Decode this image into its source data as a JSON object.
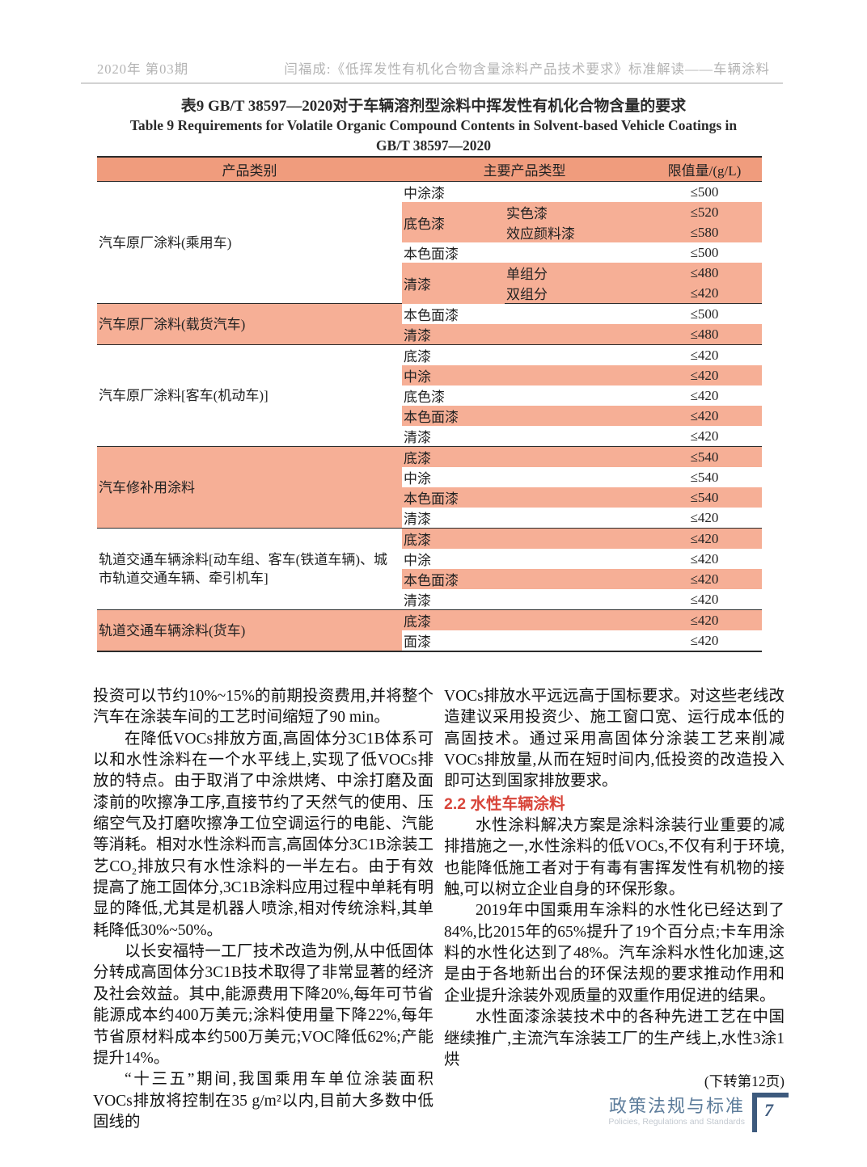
{
  "header": {
    "issue": "2020年 第03期",
    "running_title": "闫福成:《低挥发性有机化合物含量涂料产品技术要求》标准解读——车辆涂料"
  },
  "table": {
    "title_zh": "表9  GB/T 38597—2020对于车辆溶剂型涂料中挥发性有机化合物含量的要求",
    "title_en_line1": "Table 9   Requirements for Volatile Organic Compound Contents in Solvent-based Vehicle Coatings in",
    "title_en_line2": "GB/T 38597—2020",
    "columns": [
      "产品类别",
      "主要产品类型",
      "限值量/(g/L)"
    ],
    "colors": {
      "header_bg": "#f09c7d",
      "band_bg": "#f6af96"
    },
    "groups": [
      {
        "category": "汽车原厂涂料(乘用车)",
        "category_shaded": false,
        "rows": [
          {
            "type": "中涂漆",
            "value": "≤500",
            "shaded": false
          },
          {
            "type": "底色漆",
            "shaded": true,
            "subs": [
              {
                "name": "实色漆",
                "value": "≤520"
              },
              {
                "name": "效应颜料漆",
                "value": "≤580"
              }
            ]
          },
          {
            "type": "本色面漆",
            "value": "≤500",
            "shaded": false
          },
          {
            "type": "清漆",
            "shaded": true,
            "subs": [
              {
                "name": "单组分",
                "value": "≤480"
              },
              {
                "name": "双组分",
                "value": "≤420"
              }
            ]
          }
        ]
      },
      {
        "category": "汽车原厂涂料(载货汽车)",
        "category_shaded": true,
        "rows": [
          {
            "type": "本色面漆",
            "value": "≤500",
            "shaded": false
          },
          {
            "type": "清漆",
            "value": "≤480",
            "shaded": true
          }
        ]
      },
      {
        "category": "汽车原厂涂料[客车(机动车)]",
        "category_shaded": false,
        "rows": [
          {
            "type": "底漆",
            "value": "≤420",
            "shaded": false
          },
          {
            "type": "中涂",
            "value": "≤420",
            "shaded": true
          },
          {
            "type": "底色漆",
            "value": "≤420",
            "shaded": false
          },
          {
            "type": "本色面漆",
            "value": "≤420",
            "shaded": true
          },
          {
            "type": "清漆",
            "value": "≤420",
            "shaded": false
          }
        ]
      },
      {
        "category": "汽车修补用涂料",
        "category_shaded": true,
        "rows": [
          {
            "type": "底漆",
            "value": "≤540",
            "shaded": true
          },
          {
            "type": "中涂",
            "value": "≤540",
            "shaded": false
          },
          {
            "type": "本色面漆",
            "value": "≤540",
            "shaded": true
          },
          {
            "type": "清漆",
            "value": "≤420",
            "shaded": false
          }
        ]
      },
      {
        "category": "轨道交通车辆涂料[动车组、客车(铁道车辆)、城市轨道交通车辆、牵引机车]",
        "category_shaded": false,
        "rows": [
          {
            "type": "底漆",
            "value": "≤420",
            "shaded": true
          },
          {
            "type": "中涂",
            "value": "≤420",
            "shaded": false
          },
          {
            "type": "本色面漆",
            "value": "≤420",
            "shaded": true
          },
          {
            "type": "清漆",
            "value": "≤420",
            "shaded": false
          }
        ]
      },
      {
        "category": "轨道交通车辆涂料(货车)",
        "category_shaded": true,
        "rows": [
          {
            "type": "底漆",
            "value": "≤420",
            "shaded": true
          },
          {
            "type": "面漆",
            "value": "≤420",
            "shaded": false
          }
        ]
      }
    ]
  },
  "body": {
    "left_column": {
      "blocks": [
        {
          "kind": "p",
          "indent": false,
          "text": "投资可以节约10%~15%的前期投资费用,并将整个汽车在涂装车间的工艺时间缩短了90 min。"
        },
        {
          "kind": "p",
          "indent": true,
          "text": "在降低VOCs排放方面,高固体分3C1B体系可以和水性涂料在一个水平线上,实现了低VOCs排放的特点。由于取消了中涂烘烤、中涂打磨及面漆前的吹擦净工序,直接节约了天然气的使用、压缩空气及打磨吹擦净工位空调运行的电能、汽能等消耗。相对水性涂料而言,高固体分3C1B涂装工艺CO₂排放只有水性涂料的一半左右。由于有效提高了施工固体分,3C1B涂料应用过程中单耗有明显的降低,尤其是机器人喷涂,相对传统涂料,其单耗降低30%~50%。"
        },
        {
          "kind": "p",
          "indent": true,
          "text": "以长安福特一工厂技术改造为例,从中低固体分转成高固体分3C1B技术取得了非常显著的经济及社会效益。其中,能源费用下降20%,每年可节省能源成本约400万美元;涂料使用量下降22%,每年节省原材料成本约500万美元;VOC降低62%;产能提升14%。"
        },
        {
          "kind": "p",
          "indent": true,
          "text": "“十三五”期间,我国乘用车单位涂装面积VOCs排放将控制在35 g/m²以内,目前大多数中低固线的"
        }
      ]
    },
    "right_column": {
      "blocks": [
        {
          "kind": "p",
          "indent": false,
          "text": "VOCs排放水平远远高于国标要求。对这些老线改造建议采用投资少、施工窗口宽、运行成本低的高固技术。通过采用高固体分涂装工艺来削减VOCs排放量,从而在短时间内,低投资的改造投入即可达到国家排放要求。"
        },
        {
          "kind": "h",
          "text": "2.2  水性车辆涂料"
        },
        {
          "kind": "p",
          "indent": true,
          "text": "水性涂料解决方案是涂料涂装行业重要的减排措施之一,水性涂料的低VOCs,不仅有利于环境,也能降低施工者对于有毒有害挥发性有机物的接触,可以树立企业自身的环保形象。"
        },
        {
          "kind": "p",
          "indent": true,
          "text": "2019年中国乘用车涂料的水性化已经达到了84%,比2015年的65%提升了19个百分点;卡车用涂料的水性化达到了48%。汽车涂料水性化加速,这是由于各地新出台的环保法规的要求推动作用和企业提升涂装外观质量的双重作用促进的结果。"
        },
        {
          "kind": "p",
          "indent": true,
          "text": "水性面漆涂装技术中的各种先进工艺在中国继续推广,主流汽车涂装工厂的生产线上,水性3涂1烘"
        },
        {
          "kind": "note",
          "text": "(下转第12页)"
        }
      ]
    }
  },
  "footer": {
    "section_zh": "政策法规与标准",
    "section_en": "Policies, Regulations and Standards",
    "page_number": "7"
  }
}
